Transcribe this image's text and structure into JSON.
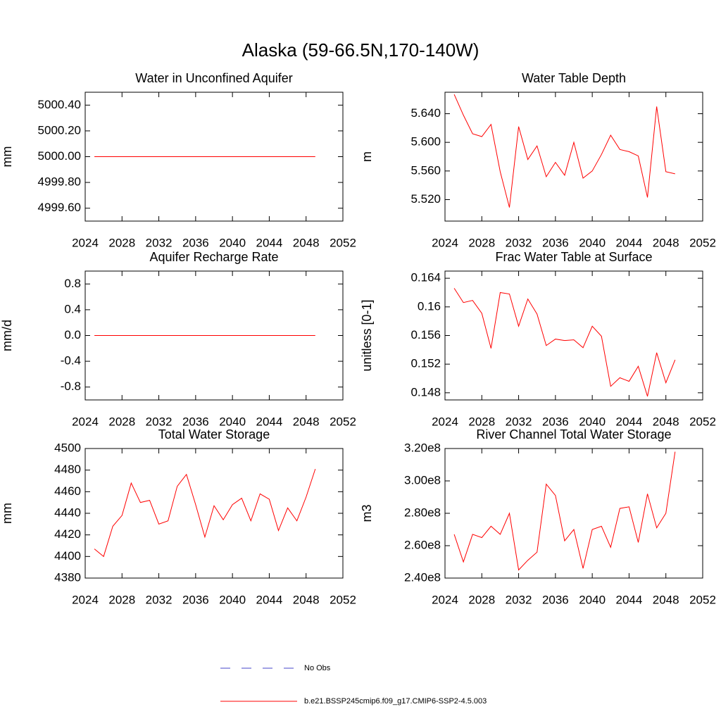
{
  "title": "Alaska (59-66.5N,170-140W)",
  "legend": [
    {
      "label": "No Obs",
      "color": "#4646c8",
      "dash": true
    },
    {
      "label": "b.e21.BSSP245cmip6.f09_g17.CMIP6-SSP2-4.5.003",
      "color": "#ff0000",
      "dash": false
    }
  ],
  "chart_data": [
    {
      "type": "line",
      "title": "Water in Unconfined Aquifer",
      "y_label": "mm",
      "x": [
        2025,
        2026,
        2027,
        2028,
        2029,
        2030,
        2031,
        2032,
        2033,
        2034,
        2035,
        2036,
        2037,
        2038,
        2039,
        2040,
        2041,
        2042,
        2043,
        2044,
        2045,
        2046,
        2047,
        2048,
        2049
      ],
      "series": [
        {
          "color": "#ff0000",
          "values": [
            5000,
            5000,
            5000,
            5000,
            5000,
            5000,
            5000,
            5000,
            5000,
            5000,
            5000,
            5000,
            5000,
            5000,
            5000,
            5000,
            5000,
            5000,
            5000,
            5000,
            5000,
            5000,
            5000,
            5000,
            5000
          ]
        }
      ],
      "xlim": [
        2024,
        2052
      ],
      "xticks": [
        2024,
        2028,
        2032,
        2036,
        2040,
        2044,
        2048,
        2052
      ],
      "ylim": [
        4999.5,
        5000.5
      ],
      "yticks": [
        {
          "value": 4999.6,
          "label": "4999.60"
        },
        {
          "value": 4999.8,
          "label": "4999.80"
        },
        {
          "value": 5000.0,
          "label": "5000.00"
        },
        {
          "value": 5000.2,
          "label": "5000.20"
        },
        {
          "value": 5000.4,
          "label": "5000.40"
        }
      ]
    },
    {
      "type": "line",
      "title": "Water Table Depth",
      "y_label": "m",
      "x": [
        2025,
        2026,
        2027,
        2028,
        2029,
        2030,
        2031,
        2032,
        2033,
        2034,
        2035,
        2036,
        2037,
        2038,
        2039,
        2040,
        2041,
        2042,
        2043,
        2044,
        2045,
        2046,
        2047,
        2048,
        2049
      ],
      "series": [
        {
          "color": "#ff0000",
          "values": [
            5.667,
            5.638,
            5.612,
            5.608,
            5.625,
            5.559,
            5.509,
            5.622,
            5.576,
            5.595,
            5.552,
            5.572,
            5.554,
            5.6,
            5.55,
            5.56,
            5.583,
            5.61,
            5.59,
            5.587,
            5.581,
            5.523,
            5.65,
            5.559,
            5.556
          ]
        }
      ],
      "xlim": [
        2024,
        2052
      ],
      "xticks": [
        2024,
        2028,
        2032,
        2036,
        2040,
        2044,
        2048,
        2052
      ],
      "ylim": [
        5.49,
        5.67
      ],
      "yticks": [
        {
          "value": 5.52,
          "label": "5.520"
        },
        {
          "value": 5.56,
          "label": "5.560"
        },
        {
          "value": 5.6,
          "label": "5.600"
        },
        {
          "value": 5.64,
          "label": "5.640"
        }
      ]
    },
    {
      "type": "line",
      "title": "Aquifer Recharge Rate",
      "y_label": "mm/d",
      "x": [
        2025,
        2026,
        2027,
        2028,
        2029,
        2030,
        2031,
        2032,
        2033,
        2034,
        2035,
        2036,
        2037,
        2038,
        2039,
        2040,
        2041,
        2042,
        2043,
        2044,
        2045,
        2046,
        2047,
        2048,
        2049
      ],
      "series": [
        {
          "color": "#ff0000",
          "values": [
            0,
            0,
            0,
            0,
            0,
            0,
            0,
            0,
            0,
            0,
            0,
            0,
            0,
            0,
            0,
            0,
            0,
            0,
            0,
            0,
            0,
            0,
            0,
            0,
            0
          ]
        }
      ],
      "xlim": [
        2024,
        2052
      ],
      "xticks": [
        2024,
        2028,
        2032,
        2036,
        2040,
        2044,
        2048,
        2052
      ],
      "ylim": [
        -1,
        1
      ],
      "yticks": [
        -0.8,
        -0.4,
        {
          "value": 0,
          "label": "0.0"
        },
        0.4,
        0.8
      ]
    },
    {
      "type": "line",
      "title": "Frac Water Table at Surface",
      "y_label": "unitless [0-1]",
      "x": [
        2025,
        2026,
        2027,
        2028,
        2029,
        2030,
        2031,
        2032,
        2033,
        2034,
        2035,
        2036,
        2037,
        2038,
        2039,
        2040,
        2041,
        2042,
        2043,
        2044,
        2045,
        2046,
        2047,
        2048,
        2049
      ],
      "series": [
        {
          "color": "#ff0000",
          "values": [
            0.1626,
            0.1606,
            0.1609,
            0.1591,
            0.1542,
            0.162,
            0.1618,
            0.1573,
            0.1611,
            0.159,
            0.1546,
            0.1555,
            0.1553,
            0.1554,
            0.1543,
            0.1573,
            0.1559,
            0.1489,
            0.1501,
            0.1496,
            0.1517,
            0.1475,
            0.1536,
            0.1494,
            0.1526
          ]
        }
      ],
      "xlim": [
        2024,
        2052
      ],
      "xticks": [
        2024,
        2028,
        2032,
        2036,
        2040,
        2044,
        2048,
        2052
      ],
      "ylim": [
        0.147,
        0.165
      ],
      "yticks": [
        0.148,
        0.152,
        0.156,
        0.16,
        0.164
      ]
    },
    {
      "type": "line",
      "title": "Total Water Storage",
      "y_label": "mm",
      "x": [
        2025,
        2026,
        2027,
        2028,
        2029,
        2030,
        2031,
        2032,
        2033,
        2034,
        2035,
        2036,
        2037,
        2038,
        2039,
        2040,
        2041,
        2042,
        2043,
        2044,
        2045,
        2046,
        2047,
        2048,
        2049
      ],
      "series": [
        {
          "color": "#ff0000",
          "values": [
            4407,
            4400,
            4428,
            4438,
            4468,
            4450,
            4452,
            4430,
            4433,
            4465,
            4476,
            4448,
            4418,
            4447,
            4434,
            4448,
            4454,
            4433,
            4458,
            4453,
            4424,
            4445,
            4433,
            4455,
            4481
          ]
        }
      ],
      "xlim": [
        2024,
        2052
      ],
      "xticks": [
        2024,
        2028,
        2032,
        2036,
        2040,
        2044,
        2048,
        2052
      ],
      "ylim": [
        4380,
        4500
      ],
      "yticks": [
        4380,
        4400,
        4420,
        4440,
        4460,
        4480,
        4500
      ]
    },
    {
      "type": "line",
      "title": "River Channel Total Water Storage",
      "y_label": "m3",
      "x": [
        2025,
        2026,
        2027,
        2028,
        2029,
        2030,
        2031,
        2032,
        2033,
        2034,
        2035,
        2036,
        2037,
        2038,
        2039,
        2040,
        2041,
        2042,
        2043,
        2044,
        2045,
        2046,
        2047,
        2048,
        2049
      ],
      "series": [
        {
          "color": "#ff0000",
          "values": [
            267000000,
            250000000,
            267000000,
            265000000,
            272000000,
            267000000,
            280000000,
            245000000,
            251000000,
            256000000,
            298000000,
            291000000,
            263000000,
            270000000,
            246000000,
            270000000,
            272000000,
            259000000,
            283000000,
            284000000,
            262000000,
            292000000,
            271000000,
            280000000,
            318000000
          ]
        }
      ],
      "xlim": [
        2024,
        2052
      ],
      "xticks": [
        2024,
        2028,
        2032,
        2036,
        2040,
        2044,
        2048,
        2052
      ],
      "ylim": [
        240000000,
        320000000
      ],
      "yticks": [
        {
          "value": 240000000,
          "label": "2.40e8"
        },
        {
          "value": 260000000,
          "label": "2.60e8"
        },
        {
          "value": 280000000,
          "label": "2.80e8"
        },
        {
          "value": 300000000,
          "label": "3.00e8"
        },
        {
          "value": 320000000,
          "label": "3.20e8"
        }
      ]
    }
  ]
}
